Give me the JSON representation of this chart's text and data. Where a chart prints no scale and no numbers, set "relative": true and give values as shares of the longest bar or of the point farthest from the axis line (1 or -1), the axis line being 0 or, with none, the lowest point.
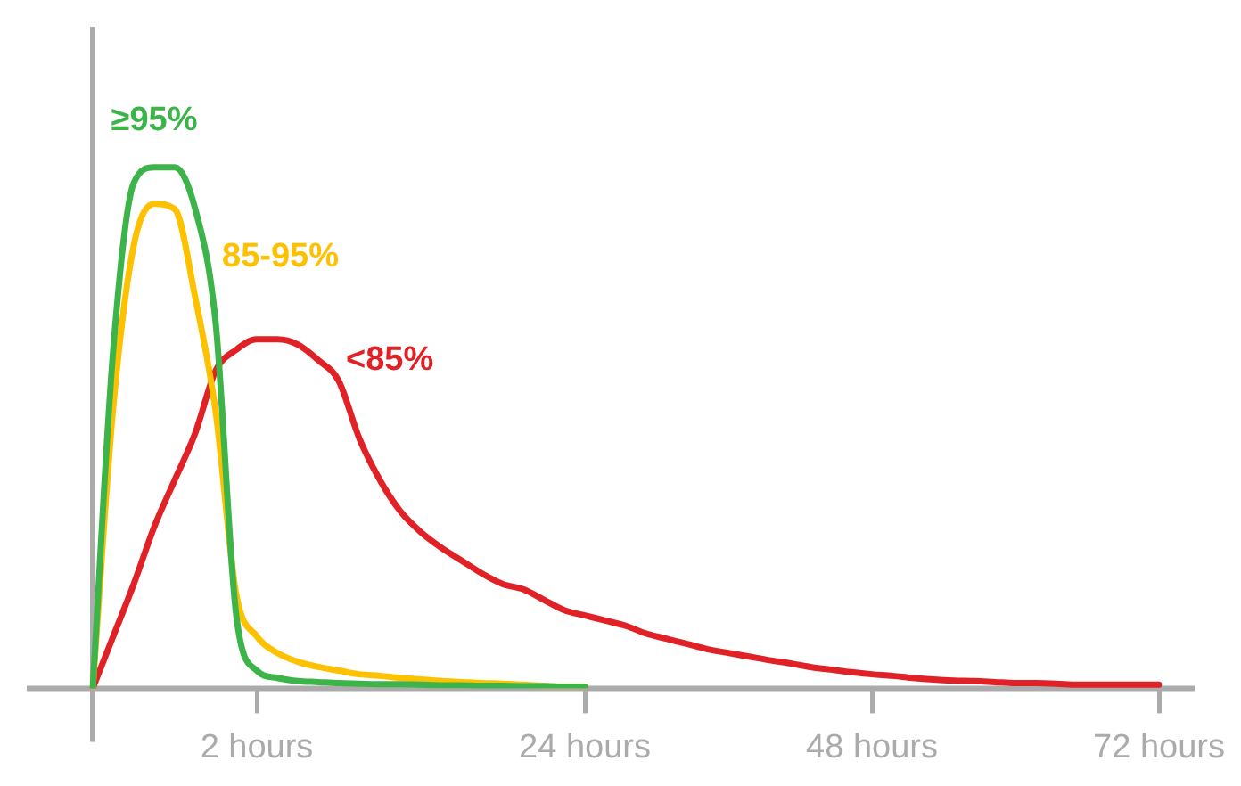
{
  "chart_data": {
    "type": "line",
    "relative": true,
    "legend": false,
    "marker": "none",
    "line_style": "solid",
    "categories": [
      null,
      null,
      null,
      null,
      null,
      null,
      null,
      null,
      "2 hours",
      null,
      null,
      null,
      null,
      null,
      null,
      null,
      null,
      null,
      null,
      null,
      null,
      null,
      null,
      null,
      "24 hours",
      null,
      null,
      null,
      null,
      null,
      null,
      null,
      null,
      null,
      null,
      null,
      null,
      null,
      "48 hours",
      null,
      null,
      null,
      null,
      null,
      null,
      null,
      null,
      null,
      null,
      null,
      null,
      null,
      "72 hours"
    ],
    "series": [
      {
        "name": "≥95%",
        "color": "#3cb449",
        "values": [
          0,
          0.65,
          0.97,
          1.0,
          1.0,
          0.92,
          0.7,
          0.14,
          0.034,
          0.02,
          0.014,
          0.012,
          0.01,
          0.009,
          0.008,
          0.008,
          0.007,
          0.006,
          0.006,
          0.005,
          0.005,
          0.004,
          0.004,
          0.003,
          0.003,
          null,
          null,
          null,
          null,
          null,
          null,
          null,
          null,
          null,
          null,
          null,
          null,
          null,
          null,
          null,
          null,
          null,
          null,
          null,
          null,
          null,
          null,
          null,
          null,
          null,
          null,
          null,
          null
        ]
      },
      {
        "name": "85-95%",
        "color": "#fdc100",
        "values": [
          0,
          0.54,
          0.85,
          0.93,
          0.92,
          0.75,
          0.53,
          0.18,
          0.1,
          0.068,
          0.051,
          0.041,
          0.034,
          0.027,
          0.024,
          0.02,
          0.017,
          0.014,
          0.012,
          0.01,
          0.009,
          0.007,
          0.005,
          0.003,
          0.003,
          null,
          null,
          null,
          null,
          null,
          null,
          null,
          null,
          null,
          null,
          null,
          null,
          null,
          null,
          null,
          null,
          null,
          null,
          null,
          null,
          null,
          null,
          null,
          null,
          null,
          null,
          null,
          null
        ]
      },
      {
        "name": "<85%",
        "color": "#e02126",
        "values": [
          0,
          0.1,
          0.2,
          0.31,
          0.4,
          0.49,
          0.61,
          0.65,
          0.67,
          0.67,
          0.66,
          0.63,
          0.59,
          0.48,
          0.4,
          0.34,
          0.3,
          0.27,
          0.245,
          0.22,
          0.2,
          0.19,
          0.17,
          0.15,
          0.14,
          0.13,
          0.12,
          0.105,
          0.095,
          0.085,
          0.075,
          0.068,
          0.061,
          0.054,
          0.048,
          0.041,
          0.036,
          0.031,
          0.027,
          0.024,
          0.02,
          0.017,
          0.015,
          0.014,
          0.012,
          0.01,
          0.01,
          0.009,
          0.007,
          0.007,
          0.007,
          0.007,
          0.007
        ]
      }
    ]
  }
}
